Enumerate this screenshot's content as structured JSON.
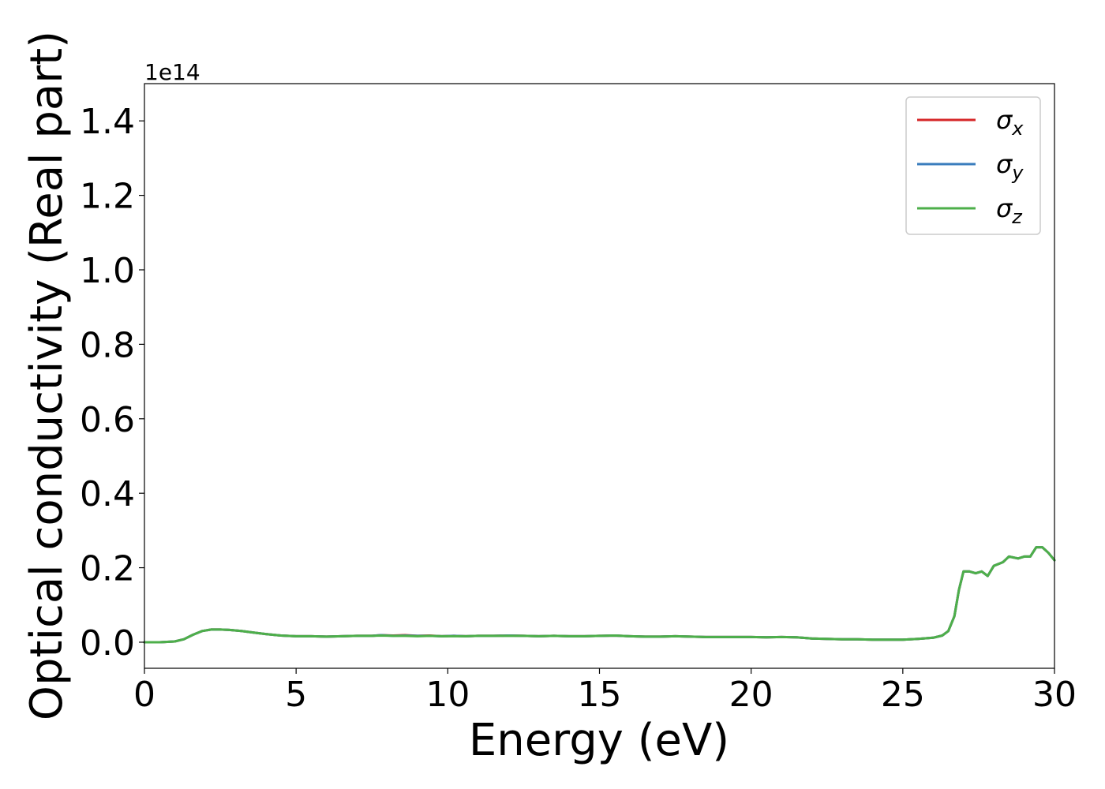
{
  "chart_data": {
    "type": "line",
    "title": "",
    "xlabel": "Energy (eV)",
    "ylabel": "Optical conductivity (Real part)",
    "y_offset_text": "1e14",
    "xlim": [
      0,
      30
    ],
    "ylim": [
      -0.07,
      1.5
    ],
    "x_ticks": [
      0,
      5,
      10,
      15,
      20,
      25,
      30
    ],
    "x_tick_labels": [
      "0",
      "5",
      "10",
      "15",
      "20",
      "25",
      "30"
    ],
    "y_ticks": [
      0.0,
      0.2,
      0.4,
      0.6,
      0.8,
      1.0,
      1.2,
      1.4
    ],
    "y_tick_labels": [
      "0.0",
      "0.2",
      "0.4",
      "0.6",
      "0.8",
      "1.0",
      "1.2",
      "1.4"
    ],
    "grid": false,
    "legend_position": "top-right",
    "x": [
      0,
      0.5,
      1.0,
      1.3,
      1.6,
      1.9,
      2.2,
      2.5,
      2.8,
      3.2,
      3.6,
      4.0,
      4.5,
      5.0,
      5.5,
      6.0,
      6.5,
      7.0,
      7.5,
      7.8,
      8.2,
      8.6,
      9.0,
      9.4,
      9.8,
      10.2,
      10.6,
      11.0,
      11.5,
      12.0,
      12.5,
      13.0,
      13.5,
      14.0,
      14.5,
      15.0,
      15.5,
      16.0,
      16.5,
      17.0,
      17.5,
      18.0,
      18.5,
      19.0,
      19.5,
      20.0,
      20.5,
      21.0,
      21.5,
      22.0,
      22.5,
      23.0,
      23.5,
      24.0,
      24.5,
      25.0,
      25.5,
      26.0,
      26.3,
      26.5,
      26.7,
      26.85,
      27.0,
      27.2,
      27.4,
      27.6,
      27.8,
      28.0,
      28.3,
      28.5,
      28.8,
      29.0,
      29.2,
      29.4,
      29.6,
      29.8,
      30.0
    ],
    "series": [
      {
        "name": "σx",
        "color": "#d62728",
        "values": [
          0.0,
          0.0,
          0.002,
          0.008,
          0.02,
          0.03,
          0.034,
          0.034,
          0.033,
          0.03,
          0.026,
          0.022,
          0.018,
          0.016,
          0.016,
          0.015,
          0.016,
          0.017,
          0.017,
          0.019,
          0.018,
          0.019,
          0.017,
          0.018,
          0.016,
          0.017,
          0.016,
          0.017,
          0.017,
          0.018,
          0.017,
          0.016,
          0.017,
          0.016,
          0.016,
          0.017,
          0.018,
          0.016,
          0.015,
          0.015,
          0.016,
          0.015,
          0.014,
          0.014,
          0.014,
          0.014,
          0.013,
          0.014,
          0.013,
          0.01,
          0.009,
          0.008,
          0.008,
          0.007,
          0.007,
          0.007,
          0.009,
          0.012,
          0.018,
          0.03,
          0.07,
          0.14,
          0.19,
          0.19,
          0.185,
          0.19,
          0.178,
          0.205,
          0.215,
          0.23,
          0.225,
          0.23,
          0.23,
          0.255,
          0.255,
          0.24,
          0.22
        ]
      },
      {
        "name": "σy",
        "color": "#3a7dbd",
        "values": [
          0.0,
          0.0,
          0.002,
          0.008,
          0.02,
          0.03,
          0.034,
          0.034,
          0.033,
          0.03,
          0.026,
          0.022,
          0.018,
          0.016,
          0.016,
          0.015,
          0.016,
          0.017,
          0.017,
          0.019,
          0.017,
          0.018,
          0.017,
          0.017,
          0.016,
          0.017,
          0.016,
          0.017,
          0.017,
          0.018,
          0.017,
          0.016,
          0.017,
          0.016,
          0.016,
          0.017,
          0.018,
          0.016,
          0.015,
          0.015,
          0.016,
          0.015,
          0.014,
          0.014,
          0.014,
          0.014,
          0.013,
          0.014,
          0.013,
          0.01,
          0.009,
          0.008,
          0.008,
          0.007,
          0.007,
          0.007,
          0.009,
          0.012,
          0.018,
          0.03,
          0.07,
          0.14,
          0.19,
          0.19,
          0.185,
          0.19,
          0.178,
          0.205,
          0.215,
          0.23,
          0.225,
          0.23,
          0.23,
          0.255,
          0.255,
          0.24,
          0.22
        ]
      },
      {
        "name": "σz",
        "color": "#4daf4a",
        "values": [
          0.0,
          0.0,
          0.002,
          0.008,
          0.02,
          0.03,
          0.034,
          0.034,
          0.033,
          0.03,
          0.026,
          0.022,
          0.018,
          0.016,
          0.016,
          0.015,
          0.016,
          0.017,
          0.017,
          0.018,
          0.017,
          0.017,
          0.016,
          0.017,
          0.016,
          0.016,
          0.016,
          0.017,
          0.017,
          0.017,
          0.017,
          0.016,
          0.017,
          0.016,
          0.016,
          0.017,
          0.018,
          0.016,
          0.015,
          0.015,
          0.016,
          0.015,
          0.014,
          0.014,
          0.014,
          0.014,
          0.013,
          0.014,
          0.013,
          0.01,
          0.009,
          0.008,
          0.008,
          0.007,
          0.007,
          0.007,
          0.009,
          0.012,
          0.018,
          0.03,
          0.07,
          0.14,
          0.19,
          0.19,
          0.185,
          0.19,
          0.178,
          0.205,
          0.215,
          0.23,
          0.225,
          0.23,
          0.23,
          0.255,
          0.255,
          0.24,
          0.22
        ]
      }
    ],
    "legend": [
      {
        "symbol": "σ",
        "subscript": "x",
        "color": "#d62728"
      },
      {
        "symbol": "σ",
        "subscript": "y",
        "color": "#3a7dbd"
      },
      {
        "symbol": "σ",
        "subscript": "z",
        "color": "#4daf4a"
      }
    ]
  }
}
